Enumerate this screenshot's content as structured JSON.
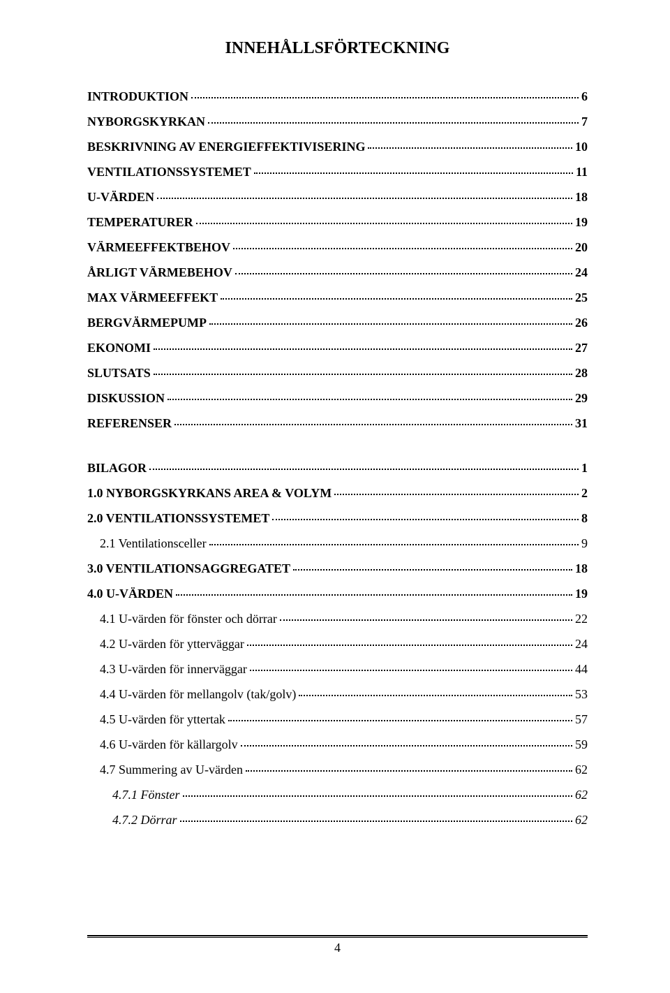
{
  "title": "INNEHÅLLSFÖRTECKNING",
  "toc": [
    {
      "label": "INTRODUKTION",
      "page": "6",
      "bold": true,
      "indent": 0
    },
    {
      "label": "NYBORGSKYRKAN",
      "page": "7",
      "bold": true,
      "indent": 0
    },
    {
      "label": "BESKRIVNING AV ENERGIEFFEKTIVISERING",
      "page": "10",
      "bold": true,
      "indent": 0
    },
    {
      "label": "VENTILATIONSSYSTEMET",
      "page": "11",
      "bold": true,
      "indent": 0
    },
    {
      "label": "U-VÄRDEN",
      "page": "18",
      "bold": true,
      "indent": 0
    },
    {
      "label": "TEMPERATURER",
      "page": "19",
      "bold": true,
      "indent": 0
    },
    {
      "label": "VÄRMEEFFEKTBEHOV",
      "page": "20",
      "bold": true,
      "indent": 0
    },
    {
      "label": "ÅRLIGT VÄRMEBEHOV",
      "page": "24",
      "bold": true,
      "indent": 0
    },
    {
      "label": "MAX VÄRMEEFFEKT",
      "page": "25",
      "bold": true,
      "indent": 0
    },
    {
      "label": "BERGVÄRMEPUMP",
      "page": "26",
      "bold": true,
      "indent": 0
    },
    {
      "label": "EKONOMI",
      "page": "27",
      "bold": true,
      "indent": 0
    },
    {
      "label": "SLUTSATS",
      "page": "28",
      "bold": true,
      "indent": 0
    },
    {
      "label": "DISKUSSION",
      "page": "29",
      "bold": true,
      "indent": 0
    },
    {
      "label": "REFERENSER",
      "page": "31",
      "bold": true,
      "indent": 0
    },
    {
      "gap": "big"
    },
    {
      "label": "BILAGOR",
      "page": "1",
      "bold": true,
      "indent": 0
    },
    {
      "label": "1.0 NYBORGSKYRKANS AREA & VOLYM",
      "page": "2",
      "bold": true,
      "indent": 0
    },
    {
      "label": "2.0 VENTILATIONSSYSTEMET",
      "page": "8",
      "bold": true,
      "indent": 0
    },
    {
      "label": "2.1 Ventilationsceller",
      "page": "9",
      "bold": false,
      "indent": 1
    },
    {
      "label": "3.0 VENTILATIONSAGGREGATET",
      "page": "18",
      "bold": true,
      "indent": 0
    },
    {
      "label": "4.0 U-VÄRDEN",
      "page": "19",
      "bold": true,
      "indent": 0
    },
    {
      "label": "4.1 U-värden för fönster och dörrar",
      "page": "22",
      "bold": false,
      "indent": 1
    },
    {
      "label": "4.2 U-värden för ytterväggar",
      "page": "24",
      "bold": false,
      "indent": 1
    },
    {
      "label": "4.3 U-värden för innerväggar",
      "page": "44",
      "bold": false,
      "indent": 1
    },
    {
      "label": "4.4 U-värden för mellangolv (tak/golv)",
      "page": "53",
      "bold": false,
      "indent": 1
    },
    {
      "label": "4.5 U-värden för yttertak",
      "page": "57",
      "bold": false,
      "indent": 1
    },
    {
      "label": "4.6 U-värden för källargolv",
      "page": "59",
      "bold": false,
      "indent": 1
    },
    {
      "label": "4.7 Summering av U-värden",
      "page": "62",
      "bold": false,
      "indent": 1
    },
    {
      "label": "4.7.1 Fönster",
      "page": "62",
      "bold": false,
      "italic": true,
      "indent": 2
    },
    {
      "label": "4.7.2 Dörrar",
      "page": "62",
      "bold": false,
      "italic": true,
      "indent": 2
    }
  ],
  "footer_page": "4",
  "colors": {
    "text": "#000000",
    "background": "#ffffff"
  },
  "fontsizes": {
    "title": 24,
    "body": 18
  }
}
